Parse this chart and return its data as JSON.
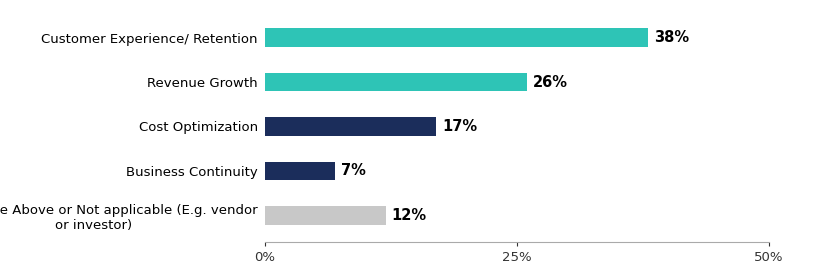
{
  "categories": [
    "None of the Above or Not applicable (E.g. vendor\nor investor)",
    "Business Continuity",
    "Cost Optimization",
    "Revenue Growth",
    "Customer Experience/ Retention"
  ],
  "values": [
    12,
    7,
    17,
    26,
    38
  ],
  "bar_colors": [
    "#c8c8c8",
    "#1b2d5b",
    "#1b2d5b",
    "#2ec4b6",
    "#2ec4b6"
  ],
  "labels": [
    "12%",
    "7%",
    "17%",
    "26%",
    "38%"
  ],
  "xlim": [
    0,
    50
  ],
  "xtick_labels": [
    "0%",
    "25%",
    "50%"
  ],
  "xtick_vals": [
    0,
    25,
    50
  ],
  "background_color": "#ffffff",
  "bar_height": 0.42,
  "label_fontsize": 10.5,
  "tick_fontsize": 9.5,
  "category_fontsize": 9.5
}
